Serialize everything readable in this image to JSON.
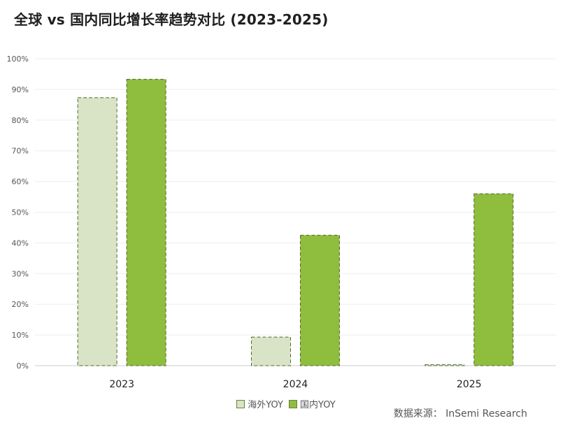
{
  "chart_data": {
    "type": "bar",
    "title": "全球 vs 国内同比增长率趋势对比 (2023-2025)",
    "categories": [
      "2023",
      "2024",
      "2025"
    ],
    "series": [
      {
        "name": "海外YOY",
        "values": [
          0.873,
          0.093,
          0.003
        ],
        "color": "#d9e3c6"
      },
      {
        "name": "国内YOY",
        "values": [
          0.933,
          0.425,
          0.56
        ],
        "color": "#8fbd3d"
      }
    ],
    "y_ticks": [
      "0%",
      "10%",
      "20%",
      "30%",
      "40%",
      "50%",
      "60%",
      "70%",
      "80%",
      "90%",
      "100%"
    ],
    "ylim": [
      0,
      1
    ],
    "grid": true,
    "legend_position": "bottom",
    "source_label": "数据来源：",
    "source_value": "InSemi Research"
  }
}
